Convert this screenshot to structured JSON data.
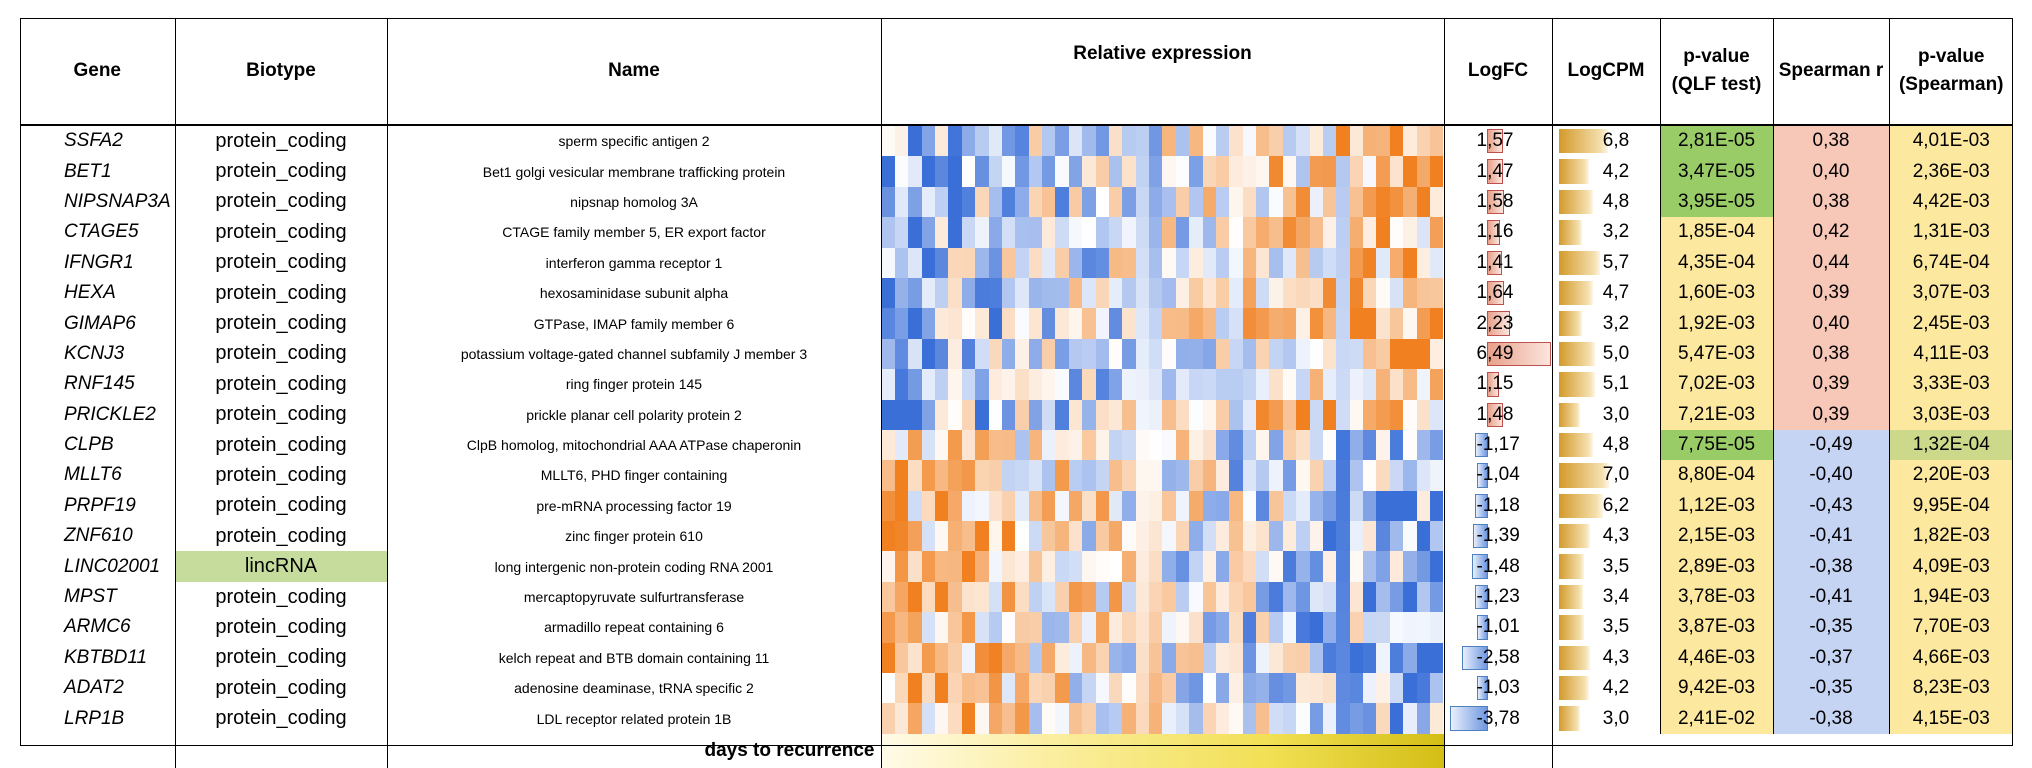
{
  "headers": {
    "gene": "Gene",
    "biotype": "Biotype",
    "name": "Name",
    "relexp": "Relative expression",
    "logfc": "LogFC",
    "logcpm": "LogCPM",
    "pqlf_1": "p-value",
    "pqlf_2": "(QLF test)",
    "spearman": "Spearman r",
    "psp_1": "p-value",
    "psp_2": "(Spearman)"
  },
  "footer": {
    "days_label": "days to recurrence"
  },
  "colors": {
    "pos_fc": "#e8a08a",
    "neg_fc": "#8fb0e8",
    "p_green": "#99cc66",
    "p_yellow": "#fde8a0",
    "r_pos": "#f7c7b8",
    "r_neg": "#c6d4f3",
    "heat_high": "#f08020",
    "heat_low": "#3a6fd8"
  },
  "rows": [
    {
      "gene": "SSFA2",
      "biotype": "protein_coding",
      "name": "sperm specific antigen 2",
      "logfc": "1,57",
      "logfc_val": 1.57,
      "logcpm": "6,8",
      "logcpm_val": 6.8,
      "p_qlf": "2,81E-05",
      "p_qlf_sig": true,
      "spearman": "0,38",
      "spearman_val": 0.38,
      "p_sp": "4,01E-03"
    },
    {
      "gene": "BET1",
      "biotype": "protein_coding",
      "name": "Bet1 golgi vesicular membrane trafficking protein",
      "logfc": "1,47",
      "logfc_val": 1.47,
      "logcpm": "4,2",
      "logcpm_val": 4.2,
      "p_qlf": "3,47E-05",
      "p_qlf_sig": true,
      "spearman": "0,40",
      "spearman_val": 0.4,
      "p_sp": "2,36E-03"
    },
    {
      "gene": "NIPSNAP3A",
      "biotype": "protein_coding",
      "name": "nipsnap homolog 3A",
      "logfc": "1,58",
      "logfc_val": 1.58,
      "logcpm": "4,8",
      "logcpm_val": 4.8,
      "p_qlf": "3,95E-05",
      "p_qlf_sig": true,
      "spearman": "0,38",
      "spearman_val": 0.38,
      "p_sp": "4,42E-03"
    },
    {
      "gene": "CTAGE5",
      "biotype": "protein_coding",
      "name": "CTAGE family member 5, ER export factor",
      "logfc": "1,16",
      "logfc_val": 1.16,
      "logcpm": "3,2",
      "logcpm_val": 3.2,
      "p_qlf": "1,85E-04",
      "p_qlf_sig": false,
      "spearman": "0,42",
      "spearman_val": 0.42,
      "p_sp": "1,31E-03"
    },
    {
      "gene": "IFNGR1",
      "biotype": "protein_coding",
      "name": "interferon gamma receptor 1",
      "logfc": "1,41",
      "logfc_val": 1.41,
      "logcpm": "5,7",
      "logcpm_val": 5.7,
      "p_qlf": "4,35E-04",
      "p_qlf_sig": false,
      "spearman": "0,44",
      "spearman_val": 0.44,
      "p_sp": "6,74E-04"
    },
    {
      "gene": "HEXA",
      "biotype": "protein_coding",
      "name": "hexosaminidase subunit alpha",
      "logfc": "1,64",
      "logfc_val": 1.64,
      "logcpm": "4,7",
      "logcpm_val": 4.7,
      "p_qlf": "1,60E-03",
      "p_qlf_sig": false,
      "spearman": "0,39",
      "spearman_val": 0.39,
      "p_sp": "3,07E-03"
    },
    {
      "gene": "GIMAP6",
      "biotype": "protein_coding",
      "name": "GTPase, IMAP family member 6",
      "logfc": "2,23",
      "logfc_val": 2.23,
      "logcpm": "3,2",
      "logcpm_val": 3.2,
      "p_qlf": "1,92E-03",
      "p_qlf_sig": false,
      "spearman": "0,40",
      "spearman_val": 0.4,
      "p_sp": "2,45E-03"
    },
    {
      "gene": "KCNJ3",
      "biotype": "protein_coding",
      "name": "potassium voltage-gated channel subfamily J member 3",
      "logfc": "6,49",
      "logfc_val": 6.49,
      "logcpm": "5,0",
      "logcpm_val": 5.0,
      "p_qlf": "5,47E-03",
      "p_qlf_sig": false,
      "spearman": "0,38",
      "spearman_val": 0.38,
      "p_sp": "4,11E-03"
    },
    {
      "gene": "RNF145",
      "biotype": "protein_coding",
      "name": "ring finger protein 145",
      "logfc": "1,15",
      "logfc_val": 1.15,
      "logcpm": "5,1",
      "logcpm_val": 5.1,
      "p_qlf": "7,02E-03",
      "p_qlf_sig": false,
      "spearman": "0,39",
      "spearman_val": 0.39,
      "p_sp": "3,33E-03"
    },
    {
      "gene": "PRICKLE2",
      "biotype": "protein_coding",
      "name": "prickle planar cell polarity protein 2",
      "logfc": "1,48",
      "logfc_val": 1.48,
      "logcpm": "3,0",
      "logcpm_val": 3.0,
      "p_qlf": "7,21E-03",
      "p_qlf_sig": false,
      "spearman": "0,39",
      "spearman_val": 0.39,
      "p_sp": "3,03E-03"
    },
    {
      "gene": "CLPB",
      "biotype": "protein_coding",
      "name": "ClpB homolog, mitochondrial AAA ATPase chaperonin",
      "logfc": "-1,17",
      "logfc_val": -1.17,
      "logcpm": "4,8",
      "logcpm_val": 4.8,
      "p_qlf": "7,75E-05",
      "p_qlf_sig": true,
      "spearman": "-0,49",
      "spearman_val": -0.49,
      "p_sp": "1,32E-04"
    },
    {
      "gene": "MLLT6",
      "biotype": "protein_coding",
      "name": "MLLT6, PHD finger containing",
      "logfc": "-1,04",
      "logfc_val": -1.04,
      "logcpm": "7,0",
      "logcpm_val": 7.0,
      "p_qlf": "8,80E-04",
      "p_qlf_sig": false,
      "spearman": "-0,40",
      "spearman_val": -0.4,
      "p_sp": "2,20E-03"
    },
    {
      "gene": "PRPF19",
      "biotype": "protein_coding",
      "name": "pre-mRNA processing factor 19",
      "logfc": "-1,18",
      "logfc_val": -1.18,
      "logcpm": "6,2",
      "logcpm_val": 6.2,
      "p_qlf": "1,12E-03",
      "p_qlf_sig": false,
      "spearman": "-0,43",
      "spearman_val": -0.43,
      "p_sp": "9,95E-04"
    },
    {
      "gene": "ZNF610",
      "biotype": "protein_coding",
      "name": "zinc finger protein 610",
      "logfc": "-1,39",
      "logfc_val": -1.39,
      "logcpm": "4,3",
      "logcpm_val": 4.3,
      "p_qlf": "2,15E-03",
      "p_qlf_sig": false,
      "spearman": "-0,41",
      "spearman_val": -0.41,
      "p_sp": "1,82E-03"
    },
    {
      "gene": "LINC02001",
      "biotype": "lincRNA",
      "name": "long intergenic non-protein coding RNA 2001",
      "logfc": "-1,48",
      "logfc_val": -1.48,
      "logcpm": "3,5",
      "logcpm_val": 3.5,
      "p_qlf": "2,89E-03",
      "p_qlf_sig": false,
      "spearman": "-0,38",
      "spearman_val": -0.38,
      "p_sp": "4,09E-03"
    },
    {
      "gene": "MPST",
      "biotype": "protein_coding",
      "name": "mercaptopyruvate sulfurtransferase",
      "logfc": "-1,23",
      "logfc_val": -1.23,
      "logcpm": "3,4",
      "logcpm_val": 3.4,
      "p_qlf": "3,78E-03",
      "p_qlf_sig": false,
      "spearman": "-0,41",
      "spearman_val": -0.41,
      "p_sp": "1,94E-03"
    },
    {
      "gene": "ARMC6",
      "biotype": "protein_coding",
      "name": "armadillo repeat containing 6",
      "logfc": "-1,01",
      "logfc_val": -1.01,
      "logcpm": "3,5",
      "logcpm_val": 3.5,
      "p_qlf": "3,87E-03",
      "p_qlf_sig": false,
      "spearman": "-0,35",
      "spearman_val": -0.35,
      "p_sp": "7,70E-03"
    },
    {
      "gene": "KBTBD11",
      "biotype": "protein_coding",
      "name": "kelch repeat and BTB domain containing 11",
      "logfc": "-2,58",
      "logfc_val": -2.58,
      "logcpm": "4,3",
      "logcpm_val": 4.3,
      "p_qlf": "4,46E-03",
      "p_qlf_sig": false,
      "spearman": "-0,37",
      "spearman_val": -0.37,
      "p_sp": "4,66E-03"
    },
    {
      "gene": "ADAT2",
      "biotype": "protein_coding",
      "name": "adenosine deaminase, tRNA specific 2",
      "logfc": "-1,03",
      "logfc_val": -1.03,
      "logcpm": "4,2",
      "logcpm_val": 4.2,
      "p_qlf": "9,42E-03",
      "p_qlf_sig": false,
      "spearman": "-0,35",
      "spearman_val": -0.35,
      "p_sp": "8,23E-03"
    },
    {
      "gene": "LRP1B",
      "biotype": "protein_coding",
      "name": "LDL receptor related protein 1B",
      "logfc": "-3,78",
      "logfc_val": -3.78,
      "logcpm": "3,0",
      "logcpm_val": 3.0,
      "p_qlf": "2,41E-02",
      "p_qlf_sig": false,
      "spearman": "-0,38",
      "spearman_val": -0.38,
      "p_sp": "4,15E-03"
    }
  ]
}
